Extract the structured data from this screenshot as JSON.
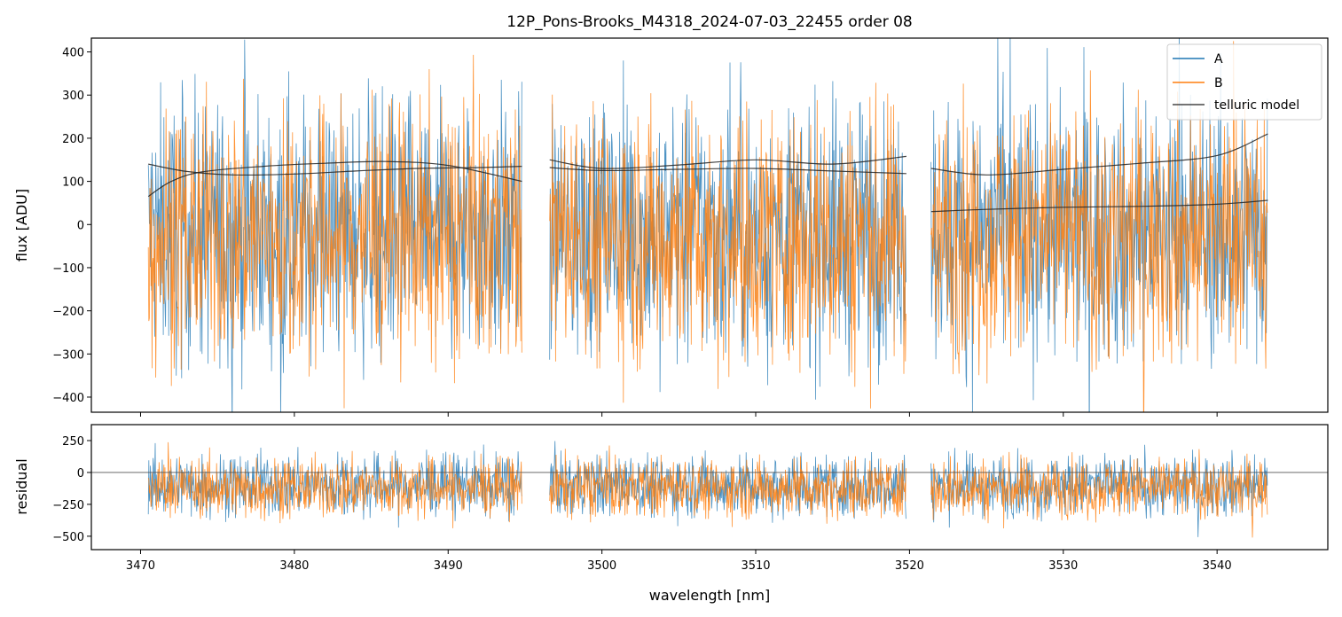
{
  "title": "12P_Pons-Brooks_M4318_2024-07-03_22455  order 08",
  "colors": {
    "A": "#1f77b4",
    "B": "#ff7f0e",
    "model": "#222222",
    "zero": "#555555"
  },
  "chart_data": [
    {
      "type": "line",
      "name": "flux",
      "ylabel": "flux [ADU]",
      "xlim": [
        3466.8,
        3547.2
      ],
      "ylim": [
        -435,
        432
      ],
      "yticks": [
        -400,
        -300,
        -200,
        -100,
        0,
        100,
        200,
        300,
        400
      ],
      "yticklabels": [
        "−400",
        "−300",
        "−200",
        "−100",
        "0",
        "100",
        "200",
        "300",
        "400"
      ],
      "legend": {
        "placement": "upper right",
        "entries": [
          {
            "label": "A",
            "series": "A"
          },
          {
            "label": "B",
            "series": "B"
          },
          {
            "label": "telluric model",
            "series": "model"
          }
        ]
      },
      "segments": [
        [
          3470.5,
          3494.8
        ],
        [
          3496.6,
          3519.8
        ],
        [
          3521.4,
          3543.3
        ]
      ],
      "noise": {
        "A": {
          "mean": -15,
          "sd": 150
        },
        "B": {
          "mean": -25,
          "sd": 145
        }
      },
      "telluric_model": [
        {
          "x": [
            3470.5,
            3473,
            3476,
            3480,
            3484,
            3488,
            3492,
            3494.8
          ],
          "y": [
            140,
            123,
            115,
            117,
            124,
            130,
            132,
            135
          ]
        },
        {
          "x": [
            3470.5,
            3472,
            3474,
            3478,
            3482,
            3486,
            3490,
            3494.8
          ],
          "y": [
            65,
            100,
            122,
            135,
            142,
            146,
            137,
            100
          ]
        },
        {
          "x": [
            3496.6,
            3500,
            3505,
            3510,
            3515,
            3519.8
          ],
          "y": [
            150,
            130,
            138,
            150,
            140,
            158
          ]
        },
        {
          "x": [
            3496.6,
            3500,
            3505,
            3510,
            3515,
            3519.8
          ],
          "y": [
            132,
            125,
            128,
            130,
            124,
            118
          ]
        },
        {
          "x": [
            3521.4,
            3525,
            3530,
            3535,
            3540,
            3543.3
          ],
          "y": [
            130,
            115,
            128,
            142,
            160,
            210
          ]
        },
        {
          "x": [
            3521.4,
            3525,
            3530,
            3535,
            3540,
            3543.3
          ],
          "y": [
            30,
            35,
            40,
            42,
            47,
            56
          ]
        }
      ]
    },
    {
      "type": "line",
      "name": "residual",
      "ylabel": "residual",
      "xlabel": "wavelength [nm]",
      "xlim": [
        3466.8,
        3547.2
      ],
      "ylim": [
        -605,
        375
      ],
      "yticks": [
        -500,
        -250,
        0,
        250
      ],
      "yticklabels": [
        "−500",
        "−250",
        "0",
        "250"
      ],
      "xticks": [
        3470,
        3480,
        3490,
        3500,
        3510,
        3520,
        3530,
        3540
      ],
      "xticklabels": [
        "3470",
        "3480",
        "3490",
        "3500",
        "3510",
        "3520",
        "3530",
        "3540"
      ],
      "segments": [
        [
          3470.5,
          3494.8
        ],
        [
          3496.6,
          3519.8
        ],
        [
          3521.4,
          3543.3
        ]
      ],
      "noise": {
        "A": {
          "mean": -100,
          "sd": 120
        },
        "B": {
          "mean": -120,
          "sd": 115
        }
      },
      "zero_line": 0
    }
  ]
}
